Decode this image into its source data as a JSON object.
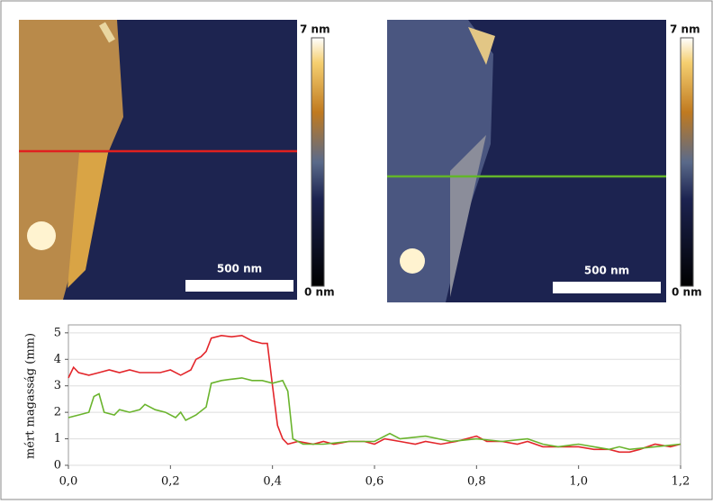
{
  "images": [
    {
      "scale_max": "7 nm",
      "scale_min": "0 nm",
      "scale_bar": "500 nm"
    },
    {
      "scale_max": "7 nm",
      "scale_min": "0 nm",
      "scale_bar": "500 nm"
    }
  ],
  "chart_data": {
    "type": "line",
    "y_label": "mért magasság (mm)",
    "xlim": [
      0,
      1.2
    ],
    "ylim": [
      0,
      5.3
    ],
    "xticks": [
      {
        "value": 0,
        "label": "0,0"
      },
      {
        "value": 0.2,
        "label": "0,2"
      },
      {
        "value": 0.4,
        "label": "0,4"
      },
      {
        "value": 0.6,
        "label": "0,6"
      },
      {
        "value": 0.8,
        "label": "0,8"
      },
      {
        "value": 1.0,
        "label": "1,0"
      },
      {
        "value": 1.2,
        "label": "1,2"
      }
    ],
    "yticks": [
      0,
      1,
      2,
      3,
      4,
      5
    ],
    "grid": true,
    "series": [
      {
        "color": "#e3262b",
        "x": [
          0.0,
          0.01,
          0.02,
          0.04,
          0.06,
          0.08,
          0.1,
          0.12,
          0.14,
          0.16,
          0.18,
          0.2,
          0.22,
          0.24,
          0.25,
          0.26,
          0.27,
          0.28,
          0.3,
          0.32,
          0.34,
          0.36,
          0.38,
          0.39,
          0.4,
          0.41,
          0.42,
          0.43,
          0.45,
          0.48,
          0.5,
          0.52,
          0.55,
          0.58,
          0.6,
          0.62,
          0.65,
          0.68,
          0.7,
          0.73,
          0.76,
          0.8,
          0.82,
          0.85,
          0.88,
          0.9,
          0.93,
          0.96,
          1.0,
          1.03,
          1.06,
          1.08,
          1.1,
          1.12,
          1.15,
          1.18,
          1.2
        ],
        "values": [
          3.3,
          3.7,
          3.5,
          3.4,
          3.5,
          3.6,
          3.5,
          3.6,
          3.5,
          3.5,
          3.5,
          3.6,
          3.4,
          3.6,
          4.0,
          4.1,
          4.3,
          4.8,
          4.9,
          4.85,
          4.9,
          4.7,
          4.6,
          4.6,
          3.0,
          1.5,
          1.0,
          0.8,
          0.9,
          0.8,
          0.9,
          0.8,
          0.9,
          0.9,
          0.8,
          1.0,
          0.9,
          0.8,
          0.9,
          0.8,
          0.9,
          1.1,
          0.9,
          0.9,
          0.8,
          0.9,
          0.7,
          0.7,
          0.7,
          0.6,
          0.6,
          0.5,
          0.5,
          0.6,
          0.8,
          0.7,
          0.8
        ]
      },
      {
        "color": "#6ab42d",
        "x": [
          0.0,
          0.02,
          0.04,
          0.05,
          0.06,
          0.07,
          0.09,
          0.1,
          0.12,
          0.14,
          0.15,
          0.17,
          0.19,
          0.21,
          0.22,
          0.23,
          0.25,
          0.27,
          0.28,
          0.3,
          0.32,
          0.34,
          0.36,
          0.38,
          0.4,
          0.42,
          0.43,
          0.44,
          0.46,
          0.5,
          0.55,
          0.6,
          0.63,
          0.65,
          0.7,
          0.75,
          0.8,
          0.85,
          0.9,
          0.93,
          0.96,
          1.0,
          1.03,
          1.06,
          1.08,
          1.1,
          1.15,
          1.2
        ],
        "values": [
          1.8,
          1.9,
          2.0,
          2.6,
          2.7,
          2.0,
          1.9,
          2.1,
          2.0,
          2.1,
          2.3,
          2.1,
          2.0,
          1.8,
          2.0,
          1.7,
          1.9,
          2.2,
          3.1,
          3.2,
          3.25,
          3.3,
          3.2,
          3.2,
          3.1,
          3.2,
          2.8,
          1.0,
          0.8,
          0.8,
          0.9,
          0.9,
          1.2,
          1.0,
          1.1,
          0.9,
          1.0,
          0.9,
          1.0,
          0.8,
          0.7,
          0.8,
          0.7,
          0.6,
          0.7,
          0.6,
          0.7,
          0.8
        ]
      }
    ]
  }
}
